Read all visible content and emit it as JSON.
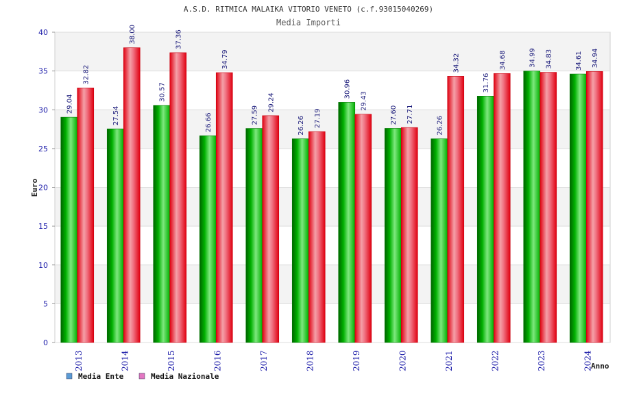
{
  "chart_data": {
    "type": "bar",
    "title": "A.S.D. RITMICA MALAIKA VITORIO VENETO (c.f.93015040269)",
    "subtitle": "Media Importi",
    "xlabel": "Anno",
    "ylabel": "Euro",
    "ylim": [
      0,
      40
    ],
    "yticks": [
      0,
      5,
      10,
      15,
      20,
      25,
      30,
      35,
      40
    ],
    "grid": true,
    "legend_position": "bottom-left",
    "categories": [
      "2013",
      "2014",
      "2015",
      "2016",
      "2017",
      "2018",
      "2019",
      "2020",
      "2021",
      "2022",
      "2023",
      "2024"
    ],
    "series": [
      {
        "name": "Media Ente",
        "values": [
          29.04,
          27.54,
          30.57,
          26.66,
          27.59,
          26.26,
          30.96,
          27.6,
          26.26,
          31.76,
          34.99,
          34.61
        ],
        "labels": [
          "29.04",
          "27.54",
          "30.57",
          "26.66",
          "27.59",
          "26.26",
          "30.96",
          "27.60",
          "26.26",
          "31.76",
          "34.99",
          "34.61"
        ],
        "color": "#00aa00",
        "legend_color": "#5b9bd5"
      },
      {
        "name": "Media Nazionale",
        "values": [
          32.82,
          38.0,
          37.36,
          34.79,
          29.24,
          27.19,
          29.43,
          27.71,
          34.32,
          34.68,
          34.83,
          34.94
        ],
        "labels": [
          "32.82",
          "38.00",
          "37.36",
          "34.79",
          "29.24",
          "27.19",
          "29.43",
          "27.71",
          "34.32",
          "34.68",
          "34.83",
          "34.94"
        ],
        "color": "#ee1122",
        "legend_color": "#e377c2"
      }
    ]
  }
}
